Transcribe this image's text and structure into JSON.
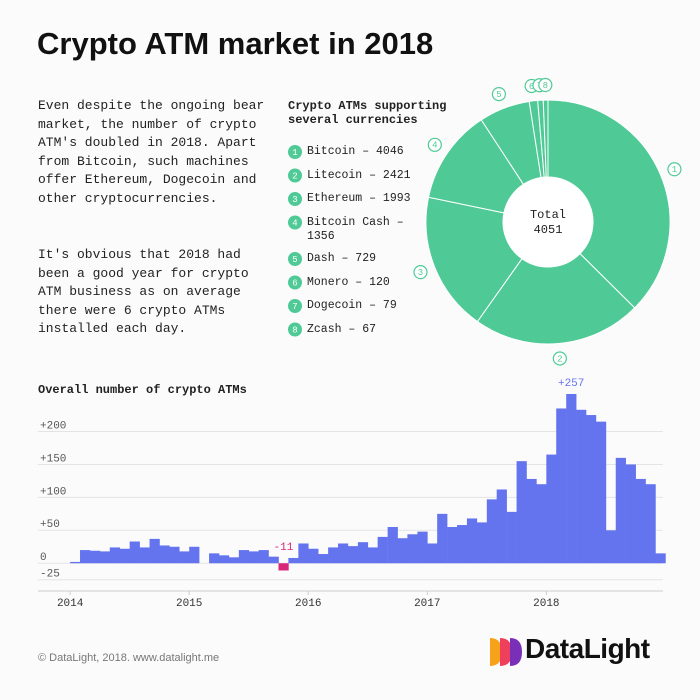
{
  "title": "Crypto ATM market in 2018",
  "intro": [
    "Even despite the ongoing bear market, the number of crypto ATM's doubled in 2018. Apart from Bitcoin, such machines offer Ethereum, Dogecoin and other cryptocurrencies.",
    "It's obvious that 2018 had been a good year for crypto ATM business as on average there were 6 crypto ATMs installed each day."
  ],
  "chart_data": [
    {
      "type": "donut",
      "title": "Crypto ATMs supporting several currencies",
      "categories": [
        "1",
        "2",
        "3",
        "4",
        "5",
        "6",
        "7",
        "8"
      ],
      "legend": [
        "Bitcoin – 4046",
        "Litecoin – 2421",
        "Ethereum – 1993",
        "Bitcoin Cash – 1356",
        "Dash – 729",
        "Monero – 120",
        "Dogecoin – 79",
        "Zcash – 67"
      ],
      "values": [
        4046,
        2421,
        1993,
        1356,
        729,
        120,
        79,
        67
      ],
      "color": "#4fca96",
      "total_label": "Total",
      "total": 4051
    },
    {
      "type": "bar",
      "title": "Overall number of crypto ATMs",
      "x": [
        2014,
        2014.083,
        2014.167,
        2014.25,
        2014.333,
        2014.417,
        2014.5,
        2014.583,
        2014.667,
        2014.75,
        2014.833,
        2014.917,
        2015,
        2015.083,
        2015.167,
        2015.25,
        2015.333,
        2015.417,
        2015.5,
        2015.583,
        2015.667,
        2015.75,
        2015.833,
        2015.917,
        2016,
        2016.083,
        2016.167,
        2016.25,
        2016.333,
        2016.417,
        2016.5,
        2016.583,
        2016.667,
        2016.75,
        2016.833,
        2016.917,
        2017,
        2017.083,
        2017.167,
        2017.25,
        2017.333,
        2017.417,
        2017.5,
        2017.583,
        2017.667,
        2017.75,
        2017.833,
        2017.917,
        2018,
        2018.083,
        2018.167,
        2018.25,
        2018.333,
        2018.417,
        2018.5,
        2018.583,
        2018.667,
        2018.75,
        2018.833,
        2018.917
      ],
      "values": [
        2,
        20,
        19,
        18,
        24,
        22,
        33,
        24,
        37,
        27,
        25,
        18,
        25,
        0,
        15,
        12,
        9,
        20,
        18,
        20,
        10,
        -11,
        8,
        30,
        22,
        14,
        24,
        30,
        26,
        32,
        24,
        40,
        55,
        38,
        44,
        48,
        30,
        75,
        55,
        58,
        68,
        62,
        97,
        112,
        78,
        155,
        128,
        120,
        165,
        235,
        257,
        233,
        225,
        215,
        50,
        160,
        150,
        128,
        120,
        15
      ],
      "value_labels": [
        null,
        null,
        null,
        null,
        null,
        null,
        null,
        null,
        null,
        null,
        null,
        null,
        null,
        null,
        null,
        null,
        null,
        null,
        null,
        null,
        null,
        "-11",
        null,
        null,
        null,
        null,
        null,
        null,
        null,
        null,
        null,
        null,
        null,
        null,
        null,
        null,
        null,
        null,
        null,
        null,
        null,
        null,
        null,
        null,
        null,
        null,
        null,
        null,
        null,
        null,
        "+257",
        null,
        null,
        null,
        null,
        null,
        null,
        null,
        null,
        null
      ],
      "color": "#6474ee",
      "negative_color": "#d7287a",
      "xlim": [
        2013.73,
        2018.98
      ],
      "xticks": [
        2014,
        2015,
        2016,
        2017,
        2018
      ],
      "ylim": [
        -30,
        260
      ],
      "yticks": [
        -25,
        0,
        {
          "value": 50,
          "label": "+50"
        },
        {
          "value": 100,
          "label": "+100"
        },
        {
          "value": 150,
          "label": "+150"
        },
        {
          "value": 200,
          "label": "+200"
        }
      ],
      "grid": true
    }
  ],
  "footer": "© DataLight, 2018. www.datalight.me",
  "logo": "DataLight"
}
